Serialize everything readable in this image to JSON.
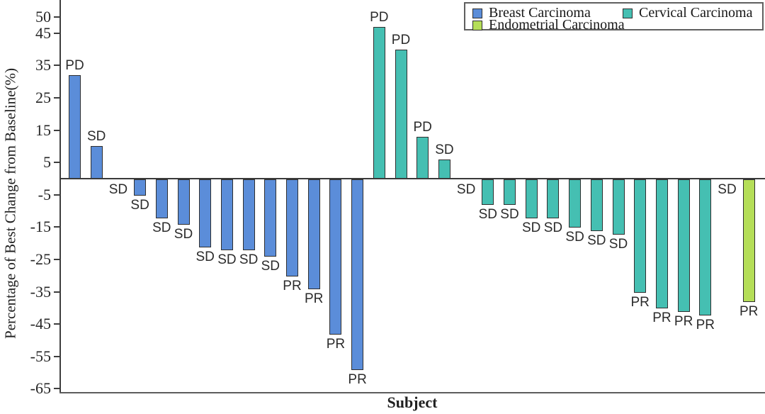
{
  "chart_data": {
    "type": "bar",
    "subtype": "waterfall-best-change",
    "title": "",
    "xlabel": "Subject",
    "ylabel": "Percentage of Best Change from Baseline(%)",
    "yticks": [
      50,
      45,
      35,
      25,
      15,
      5,
      -5,
      -15,
      -25,
      -35,
      -45,
      -55,
      -65
    ],
    "ylim": [
      -67,
      55
    ],
    "grid": false,
    "x_tick_labels": "none (one bar per subject)",
    "legend_position": "top-right",
    "series": [
      {
        "name": "Breast Carcinoma",
        "color": "#5b8dd9",
        "points": [
          {
            "value": 32,
            "response": "PD"
          },
          {
            "value": 10,
            "response": "SD"
          },
          {
            "value": 0,
            "response": "SD"
          },
          {
            "value": -5,
            "response": "SD"
          },
          {
            "value": -12,
            "response": "SD"
          },
          {
            "value": -14,
            "response": "SD"
          },
          {
            "value": -21,
            "response": "SD"
          },
          {
            "value": -22,
            "response": "SD"
          },
          {
            "value": -22,
            "response": "SD"
          },
          {
            "value": -24,
            "response": "SD"
          },
          {
            "value": -30,
            "response": "PR"
          },
          {
            "value": -34,
            "response": "PR"
          },
          {
            "value": -48,
            "response": "PR"
          },
          {
            "value": -59,
            "response": "PR"
          }
        ]
      },
      {
        "name": "Cervical Carcinoma",
        "color": "#45bfb2",
        "points": [
          {
            "value": 47,
            "response": "PD"
          },
          {
            "value": 40,
            "response": "PD"
          },
          {
            "value": 13,
            "response": "PD"
          },
          {
            "value": 6,
            "response": "SD"
          },
          {
            "value": 0,
            "response": "SD"
          },
          {
            "value": -8,
            "response": "SD"
          },
          {
            "value": -8,
            "response": "SD"
          },
          {
            "value": -12,
            "response": "SD"
          },
          {
            "value": -12,
            "response": "SD"
          },
          {
            "value": -15,
            "response": "SD"
          },
          {
            "value": -16,
            "response": "SD"
          },
          {
            "value": -17,
            "response": "SD"
          },
          {
            "value": -35,
            "response": "PR"
          },
          {
            "value": -40,
            "response": "PR"
          },
          {
            "value": -41,
            "response": "PR"
          },
          {
            "value": -42,
            "response": "PR"
          }
        ]
      },
      {
        "name": "Endometrial Carcinoma",
        "color": "#b5de58",
        "points": [
          {
            "value": 0,
            "response": "SD"
          },
          {
            "value": -38,
            "response": "PR"
          }
        ]
      }
    ]
  },
  "colors": {
    "background": "#ffffff",
    "axis": "#3d3d3d",
    "bar_border": "#2f2f2f",
    "text": "#1f1f1f",
    "breast": "#5b8dd9",
    "cervical": "#45bfb2",
    "endometrial": "#b5de58"
  }
}
